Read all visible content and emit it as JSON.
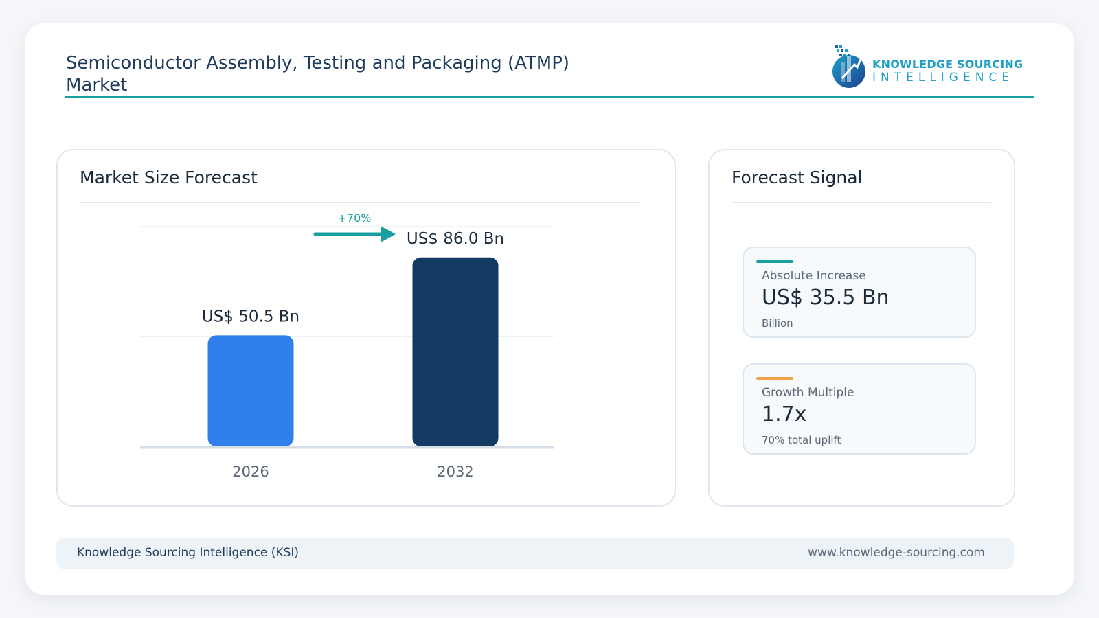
{
  "header": {
    "title": "Semiconductor Assembly, Testing and Packaging (ATMP) Market",
    "logo_top": "KNOWLEDGE SOURCING",
    "logo_bottom": "INTELLIGENCE"
  },
  "colors": {
    "accent_teal": "#18a0a0",
    "bar_2026": "#2f80ed",
    "bar_2032": "#123a63",
    "accent_orange": "#f0a24a",
    "logo_blue": "#1f9fc8"
  },
  "chart_panel": {
    "title": "Market Size Forecast"
  },
  "chart_data": {
    "type": "bar",
    "categories": [
      "2026",
      "2032"
    ],
    "values": [
      50.5,
      86.0
    ],
    "value_labels": [
      "US$ 50.5 Bn",
      "US$ 86.0 Bn"
    ],
    "growth_label": "+70%",
    "title": "",
    "xlabel": "",
    "ylabel": "",
    "ylim": [
      0,
      100
    ],
    "grid": true
  },
  "signal_panel": {
    "title": "Forecast Signal",
    "cards": [
      {
        "label": "Absolute Increase",
        "value": "US$ 35.5 Bn",
        "sub": "Billion",
        "accent": "#18a0a0"
      },
      {
        "label": "Growth Multiple",
        "value": "1.7x",
        "sub": "70% total uplift",
        "accent": "#f0a24a"
      }
    ]
  },
  "footer": {
    "left": "Knowledge Sourcing Intelligence (KSI)",
    "right": "www.knowledge-sourcing.com"
  }
}
